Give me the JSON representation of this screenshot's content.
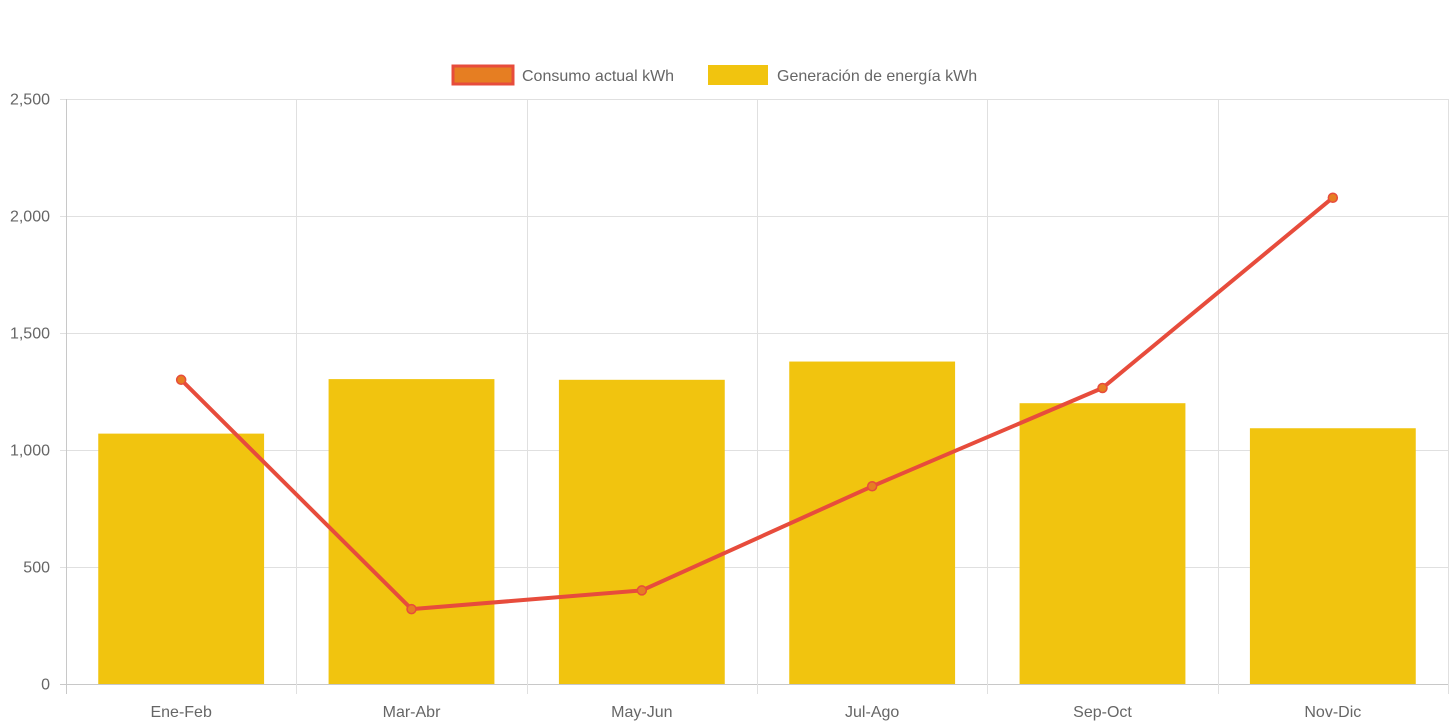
{
  "chart_data": {
    "type": "bar",
    "title": "",
    "xlabel": "",
    "ylabel": "",
    "categories": [
      "Ene-Feb",
      "Mar-Abr",
      "May-Jun",
      "Jul-Ago",
      "Sep-Oct",
      "Nov-Dic"
    ],
    "ylim": [
      0,
      2500
    ],
    "y_ticks": [
      0,
      500,
      1000,
      1500,
      2000,
      2500
    ],
    "y_tick_labels": [
      "0",
      "500",
      "1,000",
      "1,500",
      "2,000",
      "2,500"
    ],
    "grid": true,
    "legend_position": "top-center",
    "series": [
      {
        "name": "Consumo actual kWh",
        "type": "line",
        "color": "#e74c3c",
        "point_color": "#e67e22",
        "values": [
          1300,
          320,
          400,
          845,
          1265,
          2078
        ]
      },
      {
        "name": "Generación de energía kWh",
        "type": "bar",
        "color": "#f1c40f",
        "values": [
          1070,
          1303,
          1300,
          1378,
          1200,
          1093
        ]
      }
    ]
  }
}
